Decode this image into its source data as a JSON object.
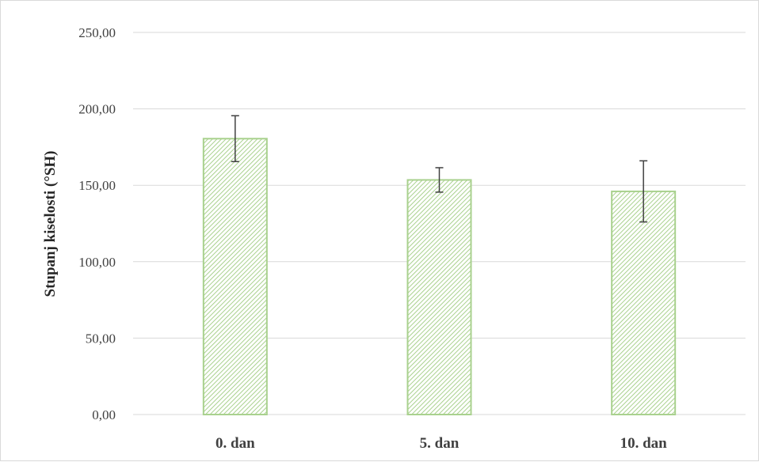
{
  "chart_data": {
    "type": "bar",
    "title": "",
    "xlabel": "",
    "ylabel": "Stupanj kiselosti (°SH)",
    "categories": [
      "0. dan",
      "5. dan",
      "10. dan"
    ],
    "values": [
      180.5,
      153.5,
      146
    ],
    "error": [
      15,
      8,
      20
    ],
    "ylim": [
      0,
      250
    ],
    "yticks": [
      0,
      50,
      100,
      150,
      200,
      250
    ],
    "ytick_labels": [
      "0,00",
      "50,00",
      "100,00",
      "150,00",
      "200,00",
      "250,00"
    ],
    "grid": true,
    "legend": "none",
    "colors": {
      "bar_stroke": "#a9d18e",
      "bar_hatch": "#a9d18e",
      "grid": "#d9d9d9",
      "error_bar": "#404040"
    }
  }
}
